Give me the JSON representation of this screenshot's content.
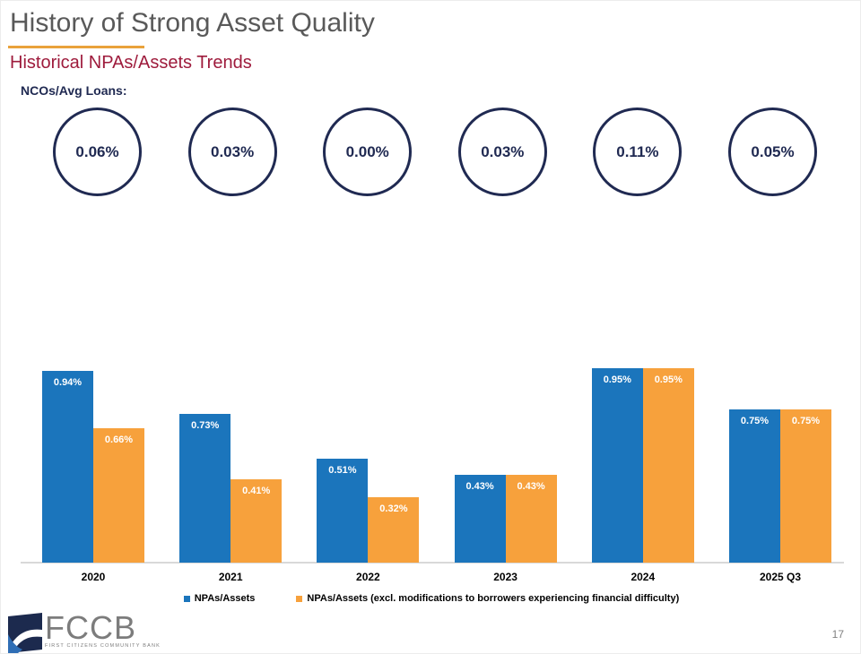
{
  "header": {
    "title": "History of Strong Asset Quality",
    "subtitle": "Historical NPAs/Assets Trends"
  },
  "nco": {
    "label": "NCOs/Avg Loans:",
    "values": [
      "0.06%",
      "0.03%",
      "0.00%",
      "0.03%",
      "0.11%",
      "0.05%"
    ]
  },
  "chart_data": {
    "type": "bar",
    "title": "Historical NPAs/Assets Trends",
    "categories": [
      "2020",
      "2021",
      "2022",
      "2023",
      "2024",
      "2025 Q3"
    ],
    "series": [
      {
        "name": "NPAs/Assets",
        "color": "#1B75BC",
        "values": [
          0.94,
          0.73,
          0.51,
          0.43,
          0.95,
          0.75
        ],
        "labels": [
          "0.94%",
          "0.73%",
          "0.51%",
          "0.43%",
          "0.95%",
          "0.75%"
        ]
      },
      {
        "name": "NPAs/Assets (excl. modifications to borrowers experiencing financial difficulty)",
        "color": "#F7A13C",
        "values": [
          0.66,
          0.41,
          0.32,
          0.43,
          0.95,
          0.75
        ],
        "labels": [
          "0.66%",
          "0.41%",
          "0.32%",
          "0.43%",
          "0.95%",
          "0.75%"
        ]
      }
    ],
    "ylim": [
      0,
      1.0
    ],
    "grid": false,
    "legend_position": "bottom",
    "value_label_color": "#FFFFFF"
  },
  "logo": {
    "text": "FCCB",
    "tagline": "FIRST CITIZENS COMMUNITY BANK"
  },
  "footer": {
    "page_number": "17"
  },
  "colors": {
    "title": "#595959",
    "subtitle": "#9E1B3C",
    "accent_underline": "#E9A23B",
    "navy": "#202A52",
    "axis": "#D9D9D9",
    "series_blue": "#1B75BC",
    "series_orange": "#F7A13C",
    "logo_gray": "#7C7C7C"
  }
}
